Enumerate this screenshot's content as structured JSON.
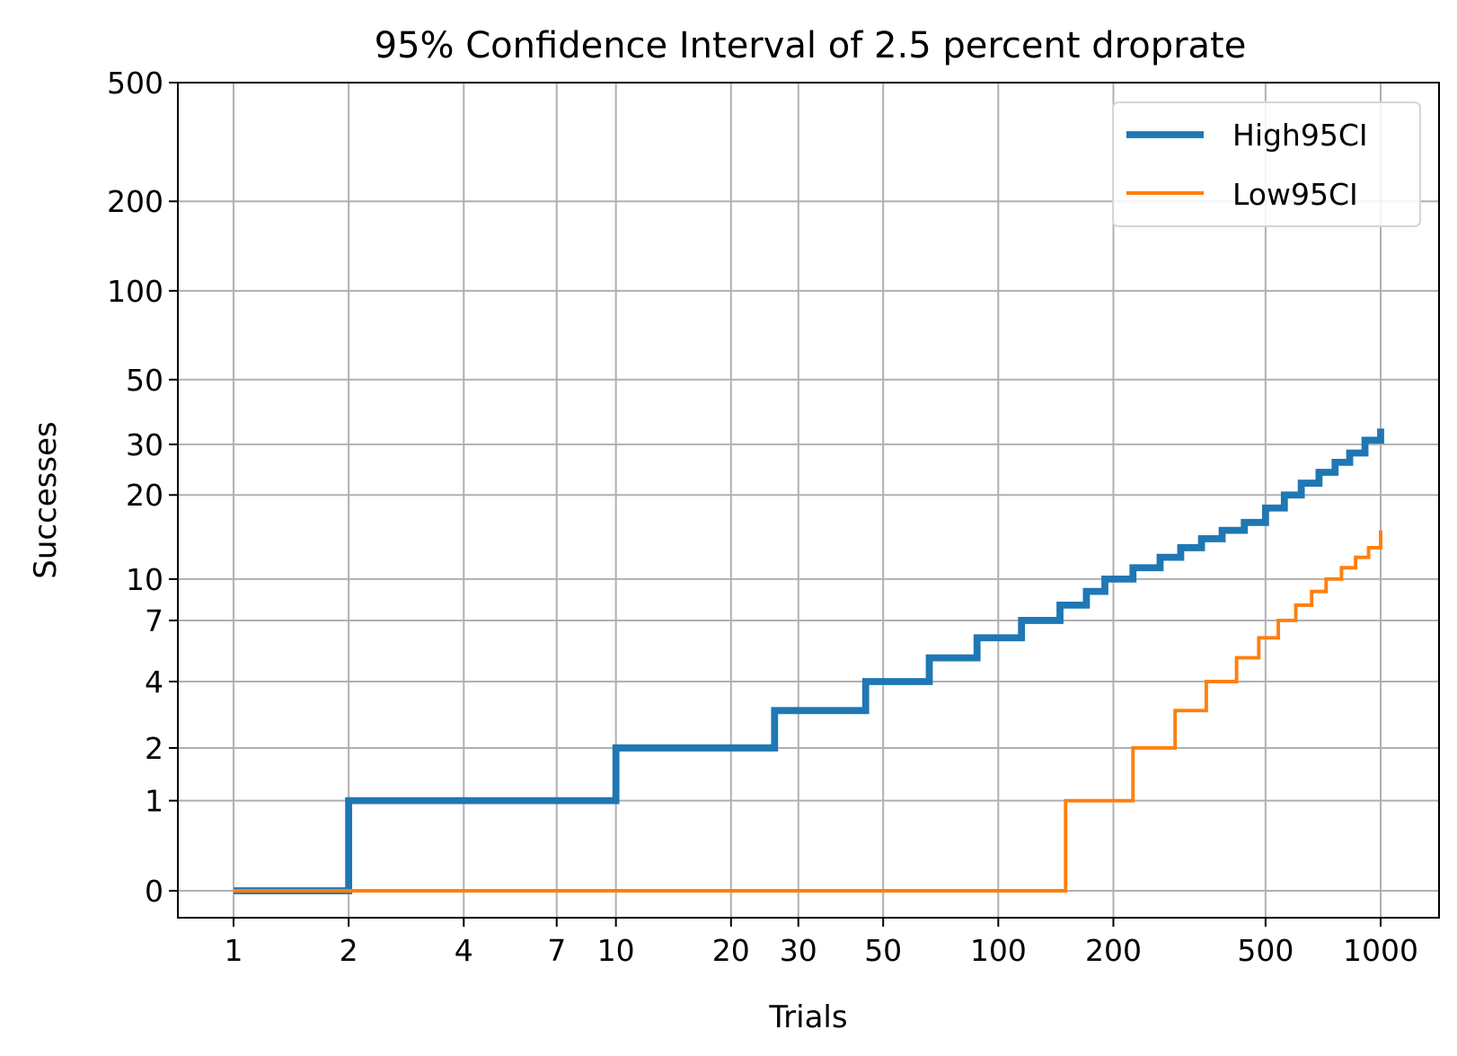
{
  "chart_data": {
    "type": "line",
    "drawstyle": "steps-post",
    "title": "95% Confidence Interval of 2.5 percent droprate",
    "xlabel": "Trials",
    "ylabel": "Successes",
    "grid": true,
    "legend_position": "top-right",
    "x_ticks": [
      {
        "value": 1,
        "label": "1"
      },
      {
        "value": 2,
        "label": "2"
      },
      {
        "value": 4,
        "label": "4"
      },
      {
        "value": 7,
        "label": "7"
      },
      {
        "value": 10,
        "label": "10"
      },
      {
        "value": 20,
        "label": "20"
      },
      {
        "value": 30,
        "label": "30"
      },
      {
        "value": 50,
        "label": "50"
      },
      {
        "value": 100,
        "label": "100"
      },
      {
        "value": 200,
        "label": "200"
      },
      {
        "value": 500,
        "label": "500"
      },
      {
        "value": 1000,
        "label": "1000"
      }
    ],
    "y_ticks": [
      {
        "value": 0,
        "label": "0"
      },
      {
        "value": 1,
        "label": "1"
      },
      {
        "value": 2,
        "label": "2"
      },
      {
        "value": 4,
        "label": "4"
      },
      {
        "value": 7,
        "label": "7"
      },
      {
        "value": 10,
        "label": "10"
      },
      {
        "value": 20,
        "label": "20"
      },
      {
        "value": 30,
        "label": "30"
      },
      {
        "value": 50,
        "label": "50"
      },
      {
        "value": 100,
        "label": "100"
      },
      {
        "value": 200,
        "label": "200"
      },
      {
        "value": 500,
        "label": "500"
      }
    ],
    "series": [
      {
        "name": "High95CI",
        "color": "#1f77b4",
        "line_width": 3,
        "x": [
          1,
          2,
          10,
          26,
          45,
          66,
          88,
          115,
          145,
          170,
          190,
          225,
          265,
          300,
          340,
          385,
          440,
          500,
          560,
          620,
          690,
          760,
          830,
          910,
          1000
        ],
        "y": [
          0,
          1,
          2,
          3,
          4,
          5,
          6,
          7,
          8,
          9,
          10,
          11,
          12,
          13,
          14,
          15,
          16,
          18,
          20,
          22,
          24,
          26,
          28,
          31,
          34
        ]
      },
      {
        "name": "Low95CI",
        "color": "#ff7f0e",
        "line_width": 1.5,
        "x": [
          1,
          150,
          225,
          290,
          350,
          420,
          480,
          540,
          600,
          660,
          720,
          790,
          860,
          930,
          1000
        ],
        "y": [
          0,
          1,
          2,
          3,
          4,
          5,
          6,
          7,
          8,
          9,
          10,
          11,
          12,
          13,
          15
        ]
      }
    ]
  }
}
